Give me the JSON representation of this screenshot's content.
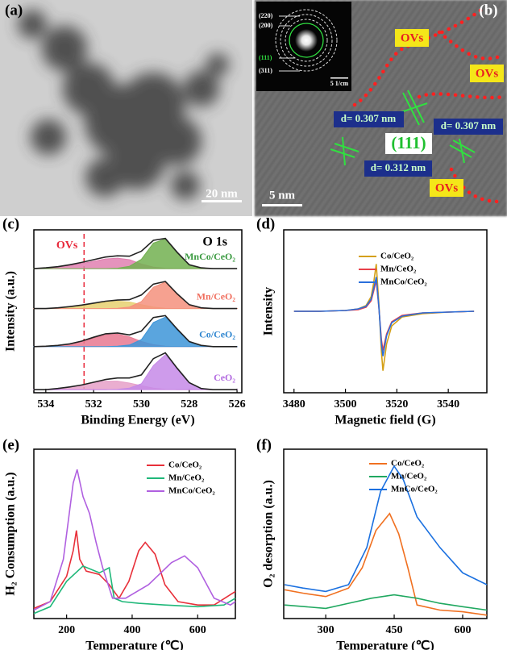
{
  "panels": {
    "a": {
      "label": "(a)",
      "scale_bar": "20 nm"
    },
    "b": {
      "label": "(b)",
      "scale_bar": "5 nm",
      "ovs": [
        "OVs",
        "OVs",
        "OVs"
      ],
      "d_spacings": [
        "d= 0.307 nm",
        "d= 0.307 nm",
        "d= 0.312 nm"
      ],
      "plane": "(111)",
      "inset": {
        "rings": [
          "(220)",
          "(200)",
          "(111)",
          "(311)"
        ],
        "scale_bar": "5 1/cm"
      }
    }
  },
  "chart_data": [
    {
      "type": "line",
      "panel_label": "(c)",
      "xlabel": "Binding Energy (eV)",
      "ylabel": "Intensity (a.u.)",
      "annotation": "O 1s",
      "vline": {
        "value": 532.4,
        "label": "OVs",
        "color": "#e8283a"
      },
      "curve_labels": true,
      "xlim": [
        534.5,
        525.8
      ],
      "xticks": [
        534,
        532,
        530,
        528,
        526
      ],
      "ylim": [
        0,
        4.2
      ],
      "x": [
        534.5,
        534,
        533.5,
        533,
        532.5,
        532,
        531.5,
        531,
        530.5,
        530,
        529.5,
        529,
        528.5,
        528,
        527.5,
        527,
        526.5,
        526
      ],
      "series": [
        {
          "color": "#e6a0c8",
          "fill": true,
          "values": [
            0.08,
            0.08,
            0.11,
            0.15,
            0.2,
            0.26,
            0.3,
            0.3,
            0.25,
            0.18,
            0.12,
            0.09,
            0.08,
            0.08,
            0.08,
            0.08,
            0.08,
            0.08
          ]
        },
        {
          "color": "#c68ae8",
          "fill": true,
          "values": [
            0.08,
            0.08,
            0.08,
            0.08,
            0.08,
            0.08,
            0.08,
            0.09,
            0.12,
            0.23,
            0.7,
            0.98,
            0.6,
            0.25,
            0.11,
            0.08,
            0.08,
            0.08
          ]
        },
        {
          "name": "CeO₂",
          "color": "#222222",
          "label_color": "#b36be0",
          "values": [
            0.08,
            0.08,
            0.11,
            0.15,
            0.2,
            0.27,
            0.34,
            0.38,
            0.38,
            0.46,
            0.88,
            1.03,
            0.63,
            0.26,
            0.11,
            0.08,
            0.08,
            0.08
          ]
        },
        {
          "color": "#e87890",
          "fill": true,
          "values": [
            1.19,
            1.2,
            1.22,
            1.26,
            1.32,
            1.41,
            1.49,
            1.51,
            1.44,
            1.32,
            1.24,
            1.2,
            1.19,
            1.19,
            1.19,
            1.19,
            1.19,
            1.19
          ]
        },
        {
          "color": "#3d95d8",
          "fill": true,
          "values": [
            1.19,
            1.19,
            1.19,
            1.19,
            1.19,
            1.19,
            1.19,
            1.2,
            1.23,
            1.37,
            1.81,
            1.95,
            1.61,
            1.31,
            1.22,
            1.19,
            1.19,
            1.19
          ]
        },
        {
          "name": "Co/CeO₂",
          "color": "#222222",
          "label_color": "#2f86d0",
          "values": [
            1.19,
            1.2,
            1.22,
            1.26,
            1.33,
            1.43,
            1.52,
            1.54,
            1.49,
            1.59,
            1.94,
            1.99,
            1.64,
            1.32,
            1.22,
            1.19,
            1.19,
            1.19
          ]
        },
        {
          "color": "#e6d070",
          "fill": true,
          "values": [
            2.17,
            2.17,
            2.19,
            2.22,
            2.25,
            2.29,
            2.33,
            2.36,
            2.34,
            2.27,
            2.21,
            2.18,
            2.17,
            2.17,
            2.17,
            2.17,
            2.17,
            2.17
          ]
        },
        {
          "color": "#f4907c",
          "fill": true,
          "values": [
            2.17,
            2.17,
            2.17,
            2.17,
            2.17,
            2.17,
            2.17,
            2.18,
            2.21,
            2.35,
            2.72,
            2.85,
            2.53,
            2.27,
            2.19,
            2.17,
            2.17,
            2.17
          ]
        },
        {
          "name": "Mn/CeO₂",
          "color": "#222222",
          "label_color": "#f07060",
          "values": [
            2.17,
            2.17,
            2.19,
            2.22,
            2.26,
            2.31,
            2.36,
            2.39,
            2.4,
            2.52,
            2.8,
            2.87,
            2.55,
            2.27,
            2.19,
            2.17,
            2.17,
            2.17
          ]
        },
        {
          "color": "#e080b0",
          "fill": true,
          "values": [
            3.2,
            3.21,
            3.24,
            3.28,
            3.33,
            3.39,
            3.45,
            3.47,
            3.43,
            3.32,
            3.24,
            3.21,
            3.2,
            3.2,
            3.2,
            3.2,
            3.2,
            3.2
          ]
        },
        {
          "color": "#72b050",
          "fill": true,
          "values": [
            3.2,
            3.2,
            3.2,
            3.2,
            3.2,
            3.2,
            3.2,
            3.21,
            3.26,
            3.44,
            3.86,
            3.96,
            3.6,
            3.29,
            3.21,
            3.2,
            3.2,
            3.2
          ]
        },
        {
          "name": "MnCo/CeO₂",
          "color": "#222222",
          "label_color": "#3a9a40",
          "values": [
            3.2,
            3.22,
            3.25,
            3.3,
            3.36,
            3.43,
            3.5,
            3.53,
            3.52,
            3.65,
            3.93,
            3.98,
            3.62,
            3.3,
            3.22,
            3.2,
            3.2,
            3.2
          ]
        }
      ]
    },
    {
      "type": "line",
      "panel_label": "(d)",
      "xlabel": "Magnetic field (G)",
      "ylabel": "Intensity",
      "xlim": [
        3476,
        3555
      ],
      "xticks": [
        3480,
        3500,
        3520,
        3540
      ],
      "ylim": [
        -1,
        1
      ],
      "series": [
        {
          "name": "Co/CeO₂",
          "color": "#d4a017",
          "x": [
            3480,
            3490,
            3500,
            3505,
            3508,
            3510,
            3511,
            3512,
            3513,
            3514,
            3514.6,
            3516,
            3518,
            3522,
            3530,
            3540,
            3550
          ],
          "values": [
            0,
            0,
            0.01,
            0.03,
            0.07,
            0.18,
            0.35,
            0.58,
            0.1,
            -0.5,
            -0.73,
            -0.4,
            -0.18,
            -0.07,
            -0.03,
            -0.01,
            0
          ]
        },
        {
          "name": "Mn/CeO₂",
          "color": "#e8404a",
          "x": [
            3480,
            3490,
            3500,
            3505,
            3508,
            3510,
            3511,
            3512,
            3513,
            3514,
            3514.6,
            3516,
            3518,
            3522,
            3530,
            3540,
            3550
          ],
          "values": [
            0,
            0,
            0.01,
            0.02,
            0.05,
            0.13,
            0.25,
            0.38,
            0.05,
            -0.35,
            -0.48,
            -0.28,
            -0.13,
            -0.05,
            -0.02,
            -0.01,
            0
          ]
        },
        {
          "name": "MnCo/CeO₂",
          "color": "#2a6fdb",
          "x": [
            3480,
            3490,
            3500,
            3505,
            3508,
            3510,
            3511,
            3512,
            3513,
            3514,
            3514.6,
            3516,
            3518,
            3522,
            3530,
            3540,
            3550
          ],
          "values": [
            0,
            0,
            0.01,
            0.03,
            0.06,
            0.15,
            0.28,
            0.42,
            0.06,
            -0.4,
            -0.55,
            -0.3,
            -0.14,
            -0.06,
            -0.02,
            -0.01,
            0
          ]
        }
      ]
    },
    {
      "type": "line",
      "panel_label": "(e)",
      "xlabel": "Temperature (℃)",
      "ylabel": "H₂ Consumption (a.u.)",
      "xlim": [
        100,
        715
      ],
      "xticks": [
        200,
        400,
        600
      ],
      "ylim": [
        0,
        1
      ],
      "series": [
        {
          "name": "Co/CeO₂",
          "color": "#e8303a",
          "x": [
            100,
            150,
            200,
            220,
            230,
            240,
            260,
            300,
            330,
            360,
            390,
            420,
            440,
            470,
            500,
            540,
            600,
            650,
            715
          ],
          "values": [
            0.06,
            0.1,
            0.25,
            0.4,
            0.52,
            0.35,
            0.28,
            0.26,
            0.2,
            0.12,
            0.22,
            0.4,
            0.45,
            0.38,
            0.2,
            0.1,
            0.08,
            0.08,
            0.16
          ]
        },
        {
          "name": "Mn/CeO₂",
          "color": "#20b87a",
          "x": [
            100,
            150,
            200,
            250,
            300,
            330,
            345,
            370,
            420,
            500,
            600,
            680,
            715
          ],
          "values": [
            0.03,
            0.07,
            0.22,
            0.31,
            0.27,
            0.3,
            0.12,
            0.1,
            0.09,
            0.08,
            0.07,
            0.08,
            0.12
          ]
        },
        {
          "name": "MnCo/CeO₂",
          "color": "#b060e0",
          "x": [
            100,
            150,
            190,
            220,
            232,
            250,
            270,
            290,
            310,
            340,
            380,
            450,
            520,
            560,
            600,
            650,
            700,
            715
          ],
          "values": [
            0.05,
            0.1,
            0.35,
            0.8,
            0.88,
            0.72,
            0.62,
            0.45,
            0.3,
            0.12,
            0.12,
            0.2,
            0.33,
            0.37,
            0.3,
            0.12,
            0.08,
            0.1
          ]
        }
      ]
    },
    {
      "type": "line",
      "panel_label": "(f)",
      "xlabel": "Temperature (℃)",
      "ylabel": "O₂ desorption (a.u.)",
      "xlim": [
        208,
        653
      ],
      "xticks": [
        300,
        450,
        600
      ],
      "ylim": [
        0,
        1
      ],
      "series": [
        {
          "name": "Co/CeO₂",
          "color": "#f07020",
          "x": [
            210,
            250,
            300,
            350,
            380,
            410,
            440,
            460,
            480,
            500,
            550,
            600,
            653
          ],
          "values": [
            0.17,
            0.15,
            0.13,
            0.18,
            0.3,
            0.52,
            0.62,
            0.5,
            0.3,
            0.08,
            0.05,
            0.04,
            0.02
          ]
        },
        {
          "name": "Mn/CeO₂",
          "color": "#20a860",
          "x": [
            210,
            300,
            350,
            400,
            450,
            500,
            550,
            600,
            653
          ],
          "values": [
            0.08,
            0.06,
            0.09,
            0.12,
            0.14,
            0.12,
            0.09,
            0.07,
            0.05
          ]
        },
        {
          "name": "MnCo/CeO₂",
          "color": "#1a70e0",
          "x": [
            210,
            250,
            300,
            350,
            390,
            420,
            450,
            470,
            500,
            550,
            600,
            653
          ],
          "values": [
            0.2,
            0.18,
            0.16,
            0.2,
            0.42,
            0.75,
            0.9,
            0.82,
            0.6,
            0.42,
            0.27,
            0.2
          ]
        }
      ]
    }
  ]
}
